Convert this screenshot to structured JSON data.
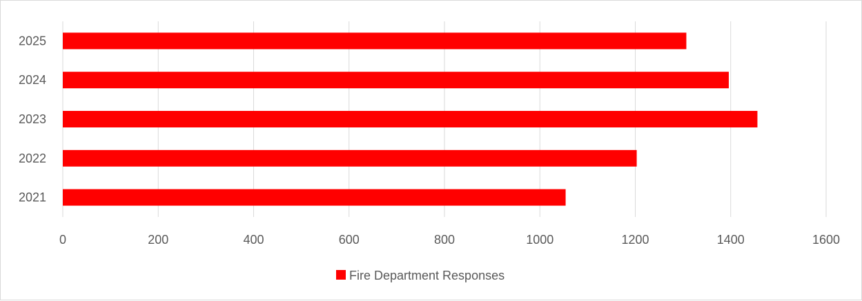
{
  "chart_data": {
    "type": "bar",
    "orientation": "horizontal",
    "title": "",
    "xlabel": "",
    "ylabel": "",
    "categories": [
      "2021",
      "2022",
      "2023",
      "2024",
      "2025"
    ],
    "series": [
      {
        "name": "Fire Department Responses",
        "color": "#ff0000",
        "values": [
          1054,
          1203,
          1456,
          1396,
          1307
        ]
      }
    ],
    "xlim": [
      0,
      1600
    ],
    "x_ticks": [
      0,
      200,
      400,
      600,
      800,
      1000,
      1200,
      1400,
      1600
    ],
    "grid": "vertical",
    "gridline_color": "#d9d9d9",
    "legend_position": "bottom"
  }
}
